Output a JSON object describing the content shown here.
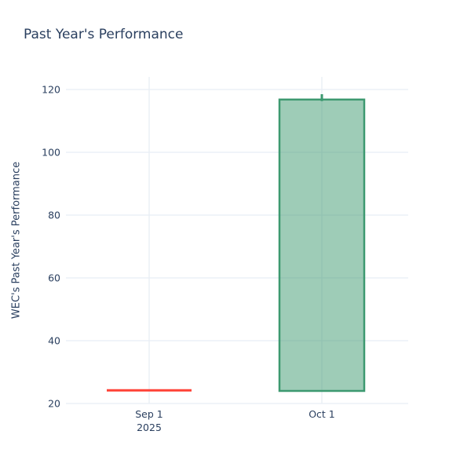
{
  "title": "Past Year's Performance",
  "colors": {
    "background": "#ffffff",
    "text": "#2a3f5f",
    "grid": "#e8edf5",
    "increasing_line": "#3D9970",
    "increasing_fill": "rgba(61,153,112,0.5)",
    "decreasing_line": "#FF4136"
  },
  "chart_data": {
    "type": "candlestick",
    "title": "Past Year's Performance",
    "xlabel": "",
    "ylabel": "WEC's Past Year's Performance",
    "legend": "none",
    "grid": true,
    "yticks": [
      20,
      40,
      60,
      80,
      100,
      120
    ],
    "ylim": [
      20,
      124
    ],
    "x_tick_labels": [
      [
        "Sep 1",
        "2025"
      ],
      [
        "Oct 1"
      ]
    ],
    "series": [
      {
        "name": "WEC",
        "points": [
          {
            "x": "Sep 1, 2025",
            "open": 24.2,
            "high": 24.2,
            "low": 24.2,
            "close": 24.2,
            "direction": "decreasing"
          },
          {
            "x": "Oct 1, 2025",
            "open": 24.0,
            "high": 118.5,
            "low": 24.0,
            "close": 116.8,
            "direction": "increasing"
          }
        ]
      }
    ]
  }
}
